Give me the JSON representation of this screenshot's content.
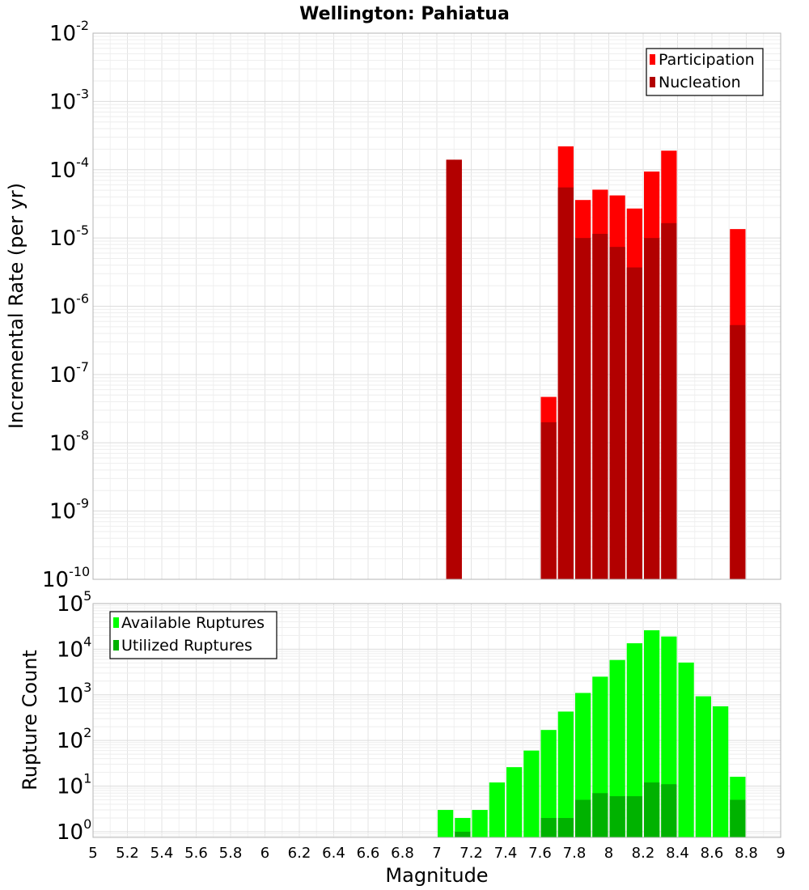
{
  "chart_data": [
    {
      "type": "bar",
      "title": "Wellington: Pahiatua",
      "xlabel": "",
      "ylabel": "Incremental Rate (per yr)",
      "yscale": "log",
      "ylim": [
        1e-10,
        0.01
      ],
      "xlim": [
        5,
        9
      ],
      "bar_width": 0.1,
      "legend_position": "top-right",
      "grid": true,
      "series": [
        {
          "name": "Participation",
          "color": "#ff0000",
          "x": [
            7.1,
            7.65,
            7.75,
            7.85,
            7.95,
            8.05,
            8.15,
            8.25,
            8.35,
            8.75
          ],
          "values": [
            0.00014,
            4.7e-08,
            0.00022,
            3.6e-05,
            5.1e-05,
            4.2e-05,
            2.7e-05,
            9.4e-05,
            0.00019,
            1.35e-05
          ]
        },
        {
          "name": "Nucleation",
          "color": "#b20000",
          "x": [
            7.1,
            7.65,
            7.75,
            7.85,
            7.95,
            8.05,
            8.15,
            8.25,
            8.35,
            8.75
          ],
          "values": [
            0.00014,
            2e-08,
            5.5e-05,
            1e-05,
            1.15e-05,
            7.4e-06,
            3.7e-06,
            1e-05,
            1.65e-05,
            5.3e-07
          ]
        }
      ]
    },
    {
      "type": "bar",
      "title": "",
      "xlabel": "Magnitude",
      "ylabel": "Rupture Count",
      "yscale": "log",
      "ylim": [
        0.75,
        100000.0
      ],
      "xlim": [
        5,
        9
      ],
      "bar_width": 0.1,
      "legend_position": "top-left",
      "grid": true,
      "x_ticks": [
        "5",
        "5.2",
        "5.4",
        "5.6",
        "5.8",
        "6",
        "6.2",
        "6.4",
        "6.6",
        "6.8",
        "7",
        "7.2",
        "7.4",
        "7.6",
        "7.8",
        "8",
        "8.2",
        "8.4",
        "8.6",
        "8.8",
        "9"
      ],
      "series": [
        {
          "name": "Available Ruptures",
          "color": "#00ff00",
          "x": [
            7.05,
            7.15,
            7.25,
            7.35,
            7.45,
            7.55,
            7.65,
            7.75,
            7.85,
            7.95,
            8.05,
            8.15,
            8.25,
            8.35,
            8.45,
            8.55,
            8.65,
            8.75
          ],
          "values": [
            3,
            2,
            3,
            12,
            26,
            60,
            170,
            430,
            1100,
            2500,
            5800,
            13500,
            26000,
            19000,
            5100,
            930,
            560,
            16
          ]
        },
        {
          "name": "Utilized Ruptures",
          "color": "#00b200",
          "x": [
            7.15,
            7.65,
            7.75,
            7.85,
            7.95,
            8.05,
            8.15,
            8.25,
            8.35,
            8.75
          ],
          "values": [
            1,
            2,
            2,
            5,
            7,
            6,
            6,
            12,
            11,
            5
          ]
        }
      ]
    }
  ]
}
